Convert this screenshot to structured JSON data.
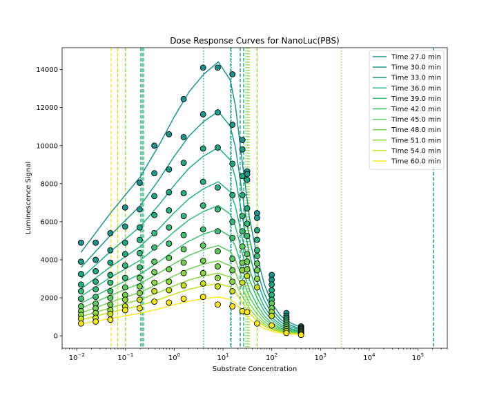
{
  "chart_data": {
    "type": "line",
    "title": "Dose Response Curves for NanoLuc(PBS)",
    "xlabel": "Substrate Concentration",
    "ylabel": "Luminescence Signal",
    "x_scale": "log",
    "xlim": [
      0.005,
      400000
    ],
    "ylim": [
      -650,
      15150
    ],
    "grid": false,
    "legend_position": "top-right",
    "x_ticks": [
      {
        "value": 0.01,
        "base": "10",
        "exp": "−2"
      },
      {
        "value": 0.1,
        "base": "10",
        "exp": "−1"
      },
      {
        "value": 1,
        "base": "10",
        "exp": "0"
      },
      {
        "value": 10,
        "base": "10",
        "exp": "1"
      },
      {
        "value": 100,
        "base": "10",
        "exp": "2"
      },
      {
        "value": 1000,
        "base": "10",
        "exp": "3"
      },
      {
        "value": 10000,
        "base": "10",
        "exp": "4"
      },
      {
        "value": 100000,
        "base": "10",
        "exp": "5"
      }
    ],
    "y_ticks": [
      {
        "value": 0,
        "label": "0"
      },
      {
        "value": 2000,
        "label": "2000"
      },
      {
        "value": 4000,
        "label": "4000"
      },
      {
        "value": 6000,
        "label": "6000"
      },
      {
        "value": 8000,
        "label": "8000"
      },
      {
        "value": 10000,
        "label": "10000"
      },
      {
        "value": 12000,
        "label": "12000"
      },
      {
        "value": 14000,
        "label": "14000"
      }
    ],
    "x": [
      0.0122,
      0.0244,
      0.0488,
      0.098,
      0.195,
      0.39,
      0.78,
      1.56,
      3.9,
      7.8,
      15.6,
      25,
      31.25,
      50,
      100,
      200,
      400
    ],
    "series": [
      {
        "name": "Time 27.0 min",
        "color": "#218f8d",
        "peak": 14400,
        "marker_values": [
          4900,
          4900,
          5400,
          6750,
          8050,
          10000,
          10600,
          12450,
          14100,
          14100,
          13750,
          10300,
          8650,
          6450,
          3200,
          1200,
          500
        ]
      },
      {
        "name": "Time 30.0 min",
        "color": "#1f978b",
        "peak": 11800,
        "marker_values": [
          3900,
          4000,
          4500,
          5750,
          6650,
          8550,
          8750,
          10450,
          11650,
          11750,
          11100,
          9800,
          8500,
          6200,
          2950,
          1050,
          450
        ]
      },
      {
        "name": "Time 33.0 min",
        "color": "#21a685",
        "peak": 9900,
        "marker_values": [
          3250,
          3400,
          3850,
          4900,
          5700,
          7350,
          7550,
          9100,
          9850,
          9900,
          9050,
          8400,
          8200,
          5550,
          2700,
          950,
          400
        ]
      },
      {
        "name": "Time 36.0 min",
        "color": "#28ae80",
        "peak": 8100,
        "marker_values": [
          2700,
          2850,
          3200,
          4300,
          5050,
          6350,
          6600,
          7500,
          8100,
          7800,
          7400,
          7400,
          6700,
          5050,
          2400,
          850,
          350
        ]
      },
      {
        "name": "Time 39.0 min",
        "color": "#35b779",
        "peak": 6850,
        "marker_values": [
          2350,
          2450,
          2800,
          3700,
          4350,
          5400,
          5700,
          6300,
          6850,
          6650,
          6000,
          6300,
          5900,
          4500,
          2150,
          750,
          300
        ]
      },
      {
        "name": "Time 42.0 min",
        "color": "#3fbc73",
        "peak": 5600,
        "marker_values": [
          1950,
          2050,
          2350,
          3050,
          3600,
          4650,
          4850,
          5300,
          5600,
          5500,
          5150,
          5500,
          5250,
          4200,
          1900,
          650,
          250
        ]
      },
      {
        "name": "Time 45.0 min",
        "color": "#5ec962",
        "peak": 4750,
        "marker_values": [
          1550,
          1700,
          2000,
          2550,
          3050,
          3900,
          4100,
          4550,
          4750,
          4450,
          4050,
          4700,
          4300,
          3800,
          1700,
          550,
          200
        ]
      },
      {
        "name": "Time 48.0 min",
        "color": "#75d054",
        "peak": 3950,
        "marker_values": [
          1300,
          1450,
          1650,
          2150,
          2600,
          3350,
          3500,
          3850,
          3950,
          3650,
          3450,
          3850,
          3900,
          3450,
          1450,
          450,
          150
        ]
      },
      {
        "name": "Time 51.0 min",
        "color": "#8fd744",
        "peak": 3300,
        "marker_values": [
          1100,
          1200,
          1350,
          1900,
          2250,
          2800,
          2850,
          3300,
          3300,
          3050,
          2850,
          3450,
          3500,
          3000,
          1250,
          350,
          150
        ]
      },
      {
        "name": "Time 54.0 min",
        "color": "#c8e020",
        "peak": 2750,
        "marker_values": [
          900,
          950,
          1150,
          1550,
          1900,
          2350,
          2400,
          2650,
          2750,
          2600,
          2350,
          2800,
          3150,
          2550,
          1050,
          250,
          100
        ]
      },
      {
        "name": "Time 60.0 min",
        "color": "#fde725",
        "peak": 2050,
        "marker_values": [
          650,
          750,
          850,
          1350,
          1450,
          1800,
          1750,
          1950,
          2050,
          1650,
          1550,
          1300,
          1250,
          650,
          550,
          150,
          50
        ]
      }
    ],
    "vertical_lines": [
      {
        "x": 0.05,
        "color": "#fde725",
        "style": "dashed"
      },
      {
        "x": 0.069,
        "color": "#c8e020",
        "style": "dashed"
      },
      {
        "x": 0.1,
        "color": "#8fd744",
        "style": "dashed"
      },
      {
        "x": 0.205,
        "color": "#35b779",
        "style": "dashed"
      },
      {
        "x": 0.22,
        "color": "#28ae80",
        "style": "dashed"
      },
      {
        "x": 0.235,
        "color": "#3fbc73",
        "style": "dashed"
      },
      {
        "x": 4.0,
        "color": "#218f8d",
        "style": "dotted"
      },
      {
        "x": 14.3,
        "color": "#21a685",
        "style": "dashed"
      },
      {
        "x": 14.8,
        "color": "#1f978b",
        "style": "dotted"
      },
      {
        "x": 22.5,
        "color": "#1f978b",
        "style": "dashed"
      },
      {
        "x": 26.5,
        "color": "#28ae80",
        "style": "dashed"
      },
      {
        "x": 29.5,
        "color": "#75d054",
        "style": "dotted"
      },
      {
        "x": 31.5,
        "color": "#8fd744",
        "style": "dotted"
      },
      {
        "x": 33.5,
        "color": "#5ec962",
        "style": "dotted"
      },
      {
        "x": 35,
        "color": "#c8e020",
        "style": "dotted"
      },
      {
        "x": 50,
        "color": "#8fd744",
        "style": "dashed"
      },
      {
        "x": 2700,
        "color": "#8fd744",
        "style": "dotted"
      },
      {
        "x": 210000,
        "color": "#218f8d",
        "style": "dashed"
      }
    ]
  }
}
